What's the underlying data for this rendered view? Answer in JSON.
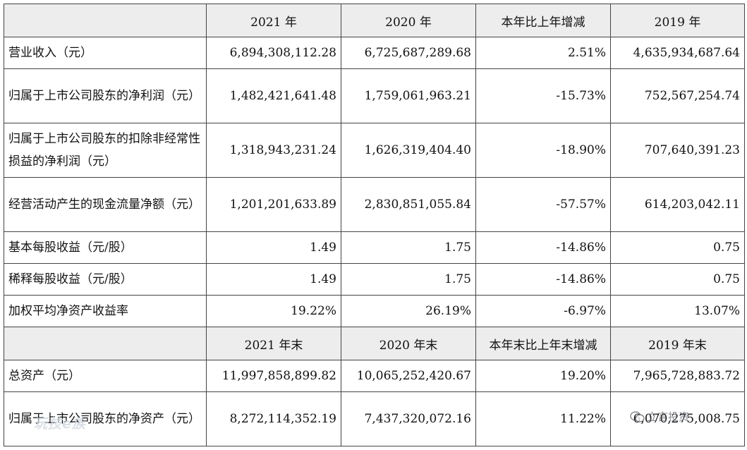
{
  "header1": [
    "",
    "2021 年",
    "2020 年",
    "本年比上年增减",
    "2019 年"
  ],
  "rows1": [
    {
      "label": "营业收入（元）",
      "v2021": "6,894,308,112.28",
      "v2020": "6,725,687,289.68",
      "change": "2.51%",
      "v2019": "4,635,934,687.64"
    },
    {
      "label": "归属于上市公司股东的净利润（元）",
      "v2021": "1,482,421,641.48",
      "v2020": "1,759,061,963.21",
      "change": "-15.73%",
      "v2019": "752,567,254.74"
    },
    {
      "label": "归属于上市公司股东的扣除非经常性损益的净利润（元）",
      "v2021": "1,318,943,231.24",
      "v2020": "1,626,319,404.40",
      "change": "-18.90%",
      "v2019": "707,640,391.23"
    },
    {
      "label": "经营活动产生的现金流量净额（元）",
      "v2021": "1,201,201,633.89",
      "v2020": "2,830,851,055.84",
      "change": "-57.57%",
      "v2019": "614,203,042.11"
    },
    {
      "label": "基本每股收益（元/股）",
      "v2021": "1.49",
      "v2020": "1.75",
      "change": "-14.86%",
      "v2019": "0.75"
    },
    {
      "label": "稀释每股收益（元/股）",
      "v2021": "1.49",
      "v2020": "1.75",
      "change": "-14.86%",
      "v2019": "0.75"
    },
    {
      "label": "加权平均净资产收益率",
      "v2021": "19.22%",
      "v2020": "26.19%",
      "change": "-6.97%",
      "v2019": "13.07%"
    }
  ],
  "header2": [
    "",
    "2021 年末",
    "2020 年末",
    "本年末比上年末增减",
    "2019 年末"
  ],
  "rows2": [
    {
      "label": "总资产（元）",
      "v2021": "11,997,858,899.82",
      "v2020": "10,065,252,420.67",
      "change": "19.20%",
      "v2019": "7,965,728,883.72"
    },
    {
      "label": "归属于上市公司股东的净资产（元）",
      "v2021": "8,272,114,352.19",
      "v2020": "7,437,320,072.16",
      "change": "11.22%",
      "v2019": "6,070,275,008.75"
    }
  ],
  "watermark_left": "玩技e族",
  "watermark_right": "立言投资"
}
